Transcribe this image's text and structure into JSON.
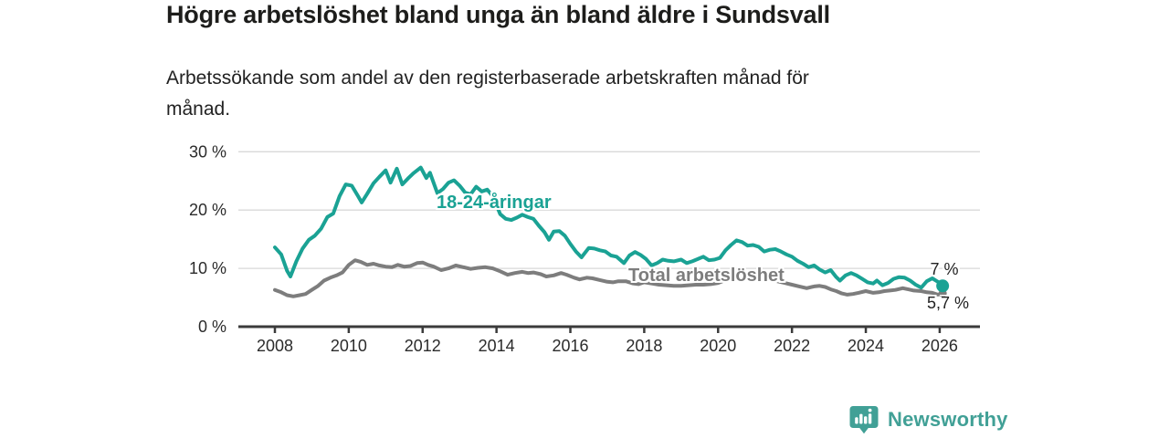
{
  "header": {
    "title": "Högre arbetslöshet bland unga än bland äldre i Sundsvall",
    "subtitle_line1": "Arbetssökande som andel av den registerbaserade arbetskraften månad för",
    "subtitle_line2": "månad."
  },
  "chart_data": {
    "type": "line",
    "title": "Högre arbetslöshet bland unga än bland äldre i Sundsvall",
    "subtitle": "Arbetssökande som andel av den registerbaserade arbetskraften månad för månad.",
    "x_axis": {
      "ticks": [
        2008,
        2010,
        2012,
        2014,
        2016,
        2018,
        2020,
        2022,
        2024,
        2026
      ],
      "range": [
        2007.0,
        2027.1
      ]
    },
    "y_axis": {
      "ticks": [
        0,
        10,
        20,
        30
      ],
      "tick_labels": [
        "0 %",
        "10 %",
        "20 %",
        "30 %"
      ],
      "range": [
        0,
        32
      ],
      "gridlines": true,
      "unit": "%"
    },
    "colors": {
      "axis": "#3b3b3b",
      "grid": "#d9d9d9",
      "tick_text": "#2b2b2b"
    },
    "series": [
      {
        "name": "18-24-åringar",
        "color": "#1aa294",
        "end_label": "7 %",
        "end_value": 7.0,
        "points": [
          [
            2008.0,
            13.6
          ],
          [
            2008.17,
            12.4
          ],
          [
            2008.33,
            9.6
          ],
          [
            2008.42,
            8.6
          ],
          [
            2008.58,
            11.2
          ],
          [
            2008.75,
            13.4
          ],
          [
            2008.92,
            14.9
          ],
          [
            2009.08,
            15.6
          ],
          [
            2009.25,
            16.8
          ],
          [
            2009.42,
            18.8
          ],
          [
            2009.58,
            19.4
          ],
          [
            2009.75,
            22.4
          ],
          [
            2009.92,
            24.4
          ],
          [
            2010.08,
            24.2
          ],
          [
            2010.25,
            22.4
          ],
          [
            2010.35,
            21.3
          ],
          [
            2010.5,
            22.8
          ],
          [
            2010.67,
            24.6
          ],
          [
            2010.83,
            25.7
          ],
          [
            2011.0,
            26.8
          ],
          [
            2011.13,
            24.7
          ],
          [
            2011.3,
            27.1
          ],
          [
            2011.45,
            24.4
          ],
          [
            2011.6,
            25.4
          ],
          [
            2011.75,
            26.3
          ],
          [
            2011.95,
            27.3
          ],
          [
            2012.1,
            25.5
          ],
          [
            2012.2,
            26.4
          ],
          [
            2012.4,
            22.9
          ],
          [
            2012.55,
            23.6
          ],
          [
            2012.7,
            24.7
          ],
          [
            2012.85,
            25.1
          ],
          [
            2013.0,
            24.2
          ],
          [
            2013.15,
            23.0
          ],
          [
            2013.3,
            22.7
          ],
          [
            2013.45,
            24.0
          ],
          [
            2013.6,
            23.2
          ],
          [
            2013.75,
            23.5
          ],
          [
            2013.9,
            22.4
          ],
          [
            2014.1,
            19.3
          ],
          [
            2014.25,
            18.5
          ],
          [
            2014.4,
            18.3
          ],
          [
            2014.55,
            18.7
          ],
          [
            2014.7,
            19.2
          ],
          [
            2014.85,
            18.8
          ],
          [
            2015.0,
            18.5
          ],
          [
            2015.15,
            17.3
          ],
          [
            2015.3,
            16.2
          ],
          [
            2015.42,
            14.9
          ],
          [
            2015.55,
            16.3
          ],
          [
            2015.7,
            16.4
          ],
          [
            2015.85,
            15.6
          ],
          [
            2016.0,
            14.2
          ],
          [
            2016.15,
            12.9
          ],
          [
            2016.3,
            11.9
          ],
          [
            2016.5,
            13.5
          ],
          [
            2016.65,
            13.4
          ],
          [
            2016.8,
            13.1
          ],
          [
            2016.95,
            12.9
          ],
          [
            2017.1,
            12.2
          ],
          [
            2017.25,
            12.0
          ],
          [
            2017.45,
            10.9
          ],
          [
            2017.6,
            12.2
          ],
          [
            2017.75,
            12.8
          ],
          [
            2017.9,
            12.3
          ],
          [
            2018.05,
            11.6
          ],
          [
            2018.2,
            10.5
          ],
          [
            2018.35,
            10.9
          ],
          [
            2018.5,
            11.5
          ],
          [
            2018.65,
            11.3
          ],
          [
            2018.8,
            11.2
          ],
          [
            2019.0,
            11.5
          ],
          [
            2019.15,
            10.9
          ],
          [
            2019.3,
            11.2
          ],
          [
            2019.45,
            11.6
          ],
          [
            2019.6,
            12.0
          ],
          [
            2019.75,
            11.4
          ],
          [
            2019.9,
            11.5
          ],
          [
            2020.05,
            11.8
          ],
          [
            2020.2,
            13.1
          ],
          [
            2020.35,
            14.0
          ],
          [
            2020.5,
            14.8
          ],
          [
            2020.65,
            14.5
          ],
          [
            2020.8,
            13.9
          ],
          [
            2020.95,
            14.0
          ],
          [
            2021.1,
            13.7
          ],
          [
            2021.25,
            12.9
          ],
          [
            2021.4,
            13.2
          ],
          [
            2021.55,
            13.3
          ],
          [
            2021.7,
            12.9
          ],
          [
            2021.85,
            12.4
          ],
          [
            2022.0,
            12.0
          ],
          [
            2022.15,
            11.3
          ],
          [
            2022.3,
            10.8
          ],
          [
            2022.45,
            10.2
          ],
          [
            2022.6,
            10.5
          ],
          [
            2022.75,
            9.8
          ],
          [
            2022.9,
            9.3
          ],
          [
            2023.05,
            9.7
          ],
          [
            2023.2,
            8.5
          ],
          [
            2023.3,
            7.9
          ],
          [
            2023.45,
            8.8
          ],
          [
            2023.6,
            9.2
          ],
          [
            2023.75,
            8.8
          ],
          [
            2023.9,
            8.2
          ],
          [
            2024.05,
            7.6
          ],
          [
            2024.2,
            7.4
          ],
          [
            2024.3,
            7.9
          ],
          [
            2024.45,
            7.1
          ],
          [
            2024.6,
            7.5
          ],
          [
            2024.75,
            8.2
          ],
          [
            2024.9,
            8.5
          ],
          [
            2025.05,
            8.4
          ],
          [
            2025.2,
            7.9
          ],
          [
            2025.35,
            7.2
          ],
          [
            2025.5,
            6.7
          ],
          [
            2025.65,
            7.8
          ],
          [
            2025.8,
            8.3
          ],
          [
            2025.95,
            7.7
          ],
          [
            2026.08,
            7.0
          ]
        ]
      },
      {
        "name": "Total arbetslöshet",
        "color": "#7d7d7d",
        "end_label": "5,7 %",
        "end_value": 5.7,
        "points": [
          [
            2008.0,
            6.3
          ],
          [
            2008.17,
            5.9
          ],
          [
            2008.33,
            5.4
          ],
          [
            2008.5,
            5.2
          ],
          [
            2008.67,
            5.4
          ],
          [
            2008.83,
            5.6
          ],
          [
            2009.0,
            6.3
          ],
          [
            2009.17,
            7.0
          ],
          [
            2009.33,
            7.9
          ],
          [
            2009.5,
            8.4
          ],
          [
            2009.67,
            8.8
          ],
          [
            2009.83,
            9.3
          ],
          [
            2010.0,
            10.6
          ],
          [
            2010.17,
            11.4
          ],
          [
            2010.33,
            11.1
          ],
          [
            2010.5,
            10.6
          ],
          [
            2010.67,
            10.8
          ],
          [
            2010.83,
            10.5
          ],
          [
            2011.0,
            10.3
          ],
          [
            2011.17,
            10.2
          ],
          [
            2011.33,
            10.6
          ],
          [
            2011.5,
            10.3
          ],
          [
            2011.67,
            10.4
          ],
          [
            2011.85,
            10.9
          ],
          [
            2012.0,
            11.0
          ],
          [
            2012.15,
            10.6
          ],
          [
            2012.3,
            10.3
          ],
          [
            2012.5,
            9.7
          ],
          [
            2012.7,
            10.0
          ],
          [
            2012.9,
            10.5
          ],
          [
            2013.1,
            10.2
          ],
          [
            2013.3,
            9.9
          ],
          [
            2013.5,
            10.1
          ],
          [
            2013.7,
            10.2
          ],
          [
            2013.9,
            10.0
          ],
          [
            2014.1,
            9.5
          ],
          [
            2014.3,
            8.9
          ],
          [
            2014.5,
            9.2
          ],
          [
            2014.7,
            9.4
          ],
          [
            2014.85,
            9.2
          ],
          [
            2015.0,
            9.3
          ],
          [
            2015.2,
            9.0
          ],
          [
            2015.35,
            8.6
          ],
          [
            2015.55,
            8.8
          ],
          [
            2015.75,
            9.2
          ],
          [
            2015.9,
            8.9
          ],
          [
            2016.1,
            8.4
          ],
          [
            2016.25,
            8.1
          ],
          [
            2016.45,
            8.4
          ],
          [
            2016.6,
            8.3
          ],
          [
            2016.8,
            8.0
          ],
          [
            2017.0,
            7.7
          ],
          [
            2017.15,
            7.6
          ],
          [
            2017.3,
            7.8
          ],
          [
            2017.5,
            7.8
          ],
          [
            2017.7,
            7.4
          ],
          [
            2017.85,
            7.3
          ],
          [
            2018.0,
            7.6
          ],
          [
            2018.2,
            7.4
          ],
          [
            2018.4,
            7.2
          ],
          [
            2018.6,
            7.1
          ],
          [
            2018.8,
            7.0
          ],
          [
            2019.0,
            7.0
          ],
          [
            2019.2,
            7.1
          ],
          [
            2019.4,
            7.2
          ],
          [
            2019.6,
            7.2
          ],
          [
            2019.8,
            7.3
          ],
          [
            2020.0,
            7.5
          ],
          [
            2020.2,
            8.0
          ],
          [
            2020.4,
            8.6
          ],
          [
            2020.6,
            8.9
          ],
          [
            2020.8,
            8.8
          ],
          [
            2021.0,
            8.6
          ],
          [
            2021.2,
            8.4
          ],
          [
            2021.4,
            8.1
          ],
          [
            2021.6,
            7.8
          ],
          [
            2021.8,
            7.5
          ],
          [
            2022.0,
            7.2
          ],
          [
            2022.2,
            6.9
          ],
          [
            2022.4,
            6.6
          ],
          [
            2022.6,
            6.9
          ],
          [
            2022.75,
            7.0
          ],
          [
            2022.9,
            6.8
          ],
          [
            2023.05,
            6.4
          ],
          [
            2023.2,
            6.1
          ],
          [
            2023.35,
            5.7
          ],
          [
            2023.5,
            5.5
          ],
          [
            2023.65,
            5.6
          ],
          [
            2023.8,
            5.8
          ],
          [
            2024.0,
            6.1
          ],
          [
            2024.2,
            5.8
          ],
          [
            2024.35,
            5.9
          ],
          [
            2024.5,
            6.1
          ],
          [
            2024.65,
            6.2
          ],
          [
            2024.8,
            6.3
          ],
          [
            2025.0,
            6.6
          ],
          [
            2025.15,
            6.4
          ],
          [
            2025.3,
            6.2
          ],
          [
            2025.5,
            6.1
          ],
          [
            2025.65,
            5.9
          ],
          [
            2025.8,
            5.8
          ],
          [
            2025.95,
            5.5
          ],
          [
            2026.08,
            5.7
          ]
        ]
      }
    ]
  },
  "footer": {
    "brand": "Newsworthy",
    "brand_color": "#41a096"
  }
}
